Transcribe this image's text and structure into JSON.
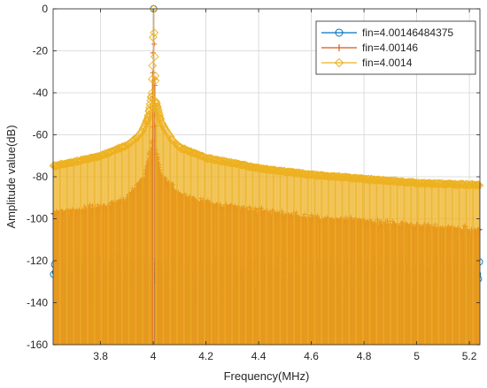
{
  "chart_data": {
    "type": "line",
    "xlabel": "Frequency(MHz)",
    "ylabel": "Amplitude value(dB)",
    "xlim": [
      3.62,
      5.24
    ],
    "ylim": [
      -160,
      0
    ],
    "xticks": [
      3.8,
      4,
      4.2,
      4.4,
      4.6,
      4.8,
      5,
      5.2
    ],
    "yticks": [
      0,
      -20,
      -40,
      -60,
      -80,
      -100,
      -120,
      -140,
      -160
    ],
    "xtick_labels": [
      "3.8",
      "4",
      "4.2",
      "4.4",
      "4.6",
      "4.8",
      "5",
      "5.2"
    ],
    "ytick_labels": [
      "0",
      "-20",
      "-40",
      "-60",
      "-80",
      "-100",
      "-120",
      "-140",
      "-160"
    ],
    "grid": true,
    "legend_position": "top-right",
    "series": [
      {
        "name": "fin=4.00146484375",
        "color": "#0072BD",
        "marker": "circle",
        "peak": [
          4.0015,
          0
        ],
        "noise_floor_mean": -125,
        "noise_floor_range": [
          -150,
          -111
        ]
      },
      {
        "name": "fin=4.00146",
        "color": "#D95319",
        "marker": "plus",
        "peak": [
          4.0015,
          0
        ],
        "x": [
          3.62,
          3.8,
          3.9,
          3.97,
          3.995,
          4.0015,
          4.01,
          4.03,
          4.1,
          4.2,
          4.4,
          4.6,
          4.8,
          5.0,
          5.24
        ],
        "y": [
          -98,
          -95,
          -91,
          -80,
          -65,
          0,
          -68,
          -80,
          -89,
          -93,
          -97,
          -100,
          -102,
          -104,
          -106
        ]
      },
      {
        "name": "fin=4.0014",
        "color": "#EDB120",
        "marker": "diamond",
        "peak": [
          4.0015,
          0
        ],
        "x": [
          3.62,
          3.7,
          3.8,
          3.9,
          3.95,
          3.98,
          3.995,
          4.0015,
          4.01,
          4.03,
          4.07,
          4.1,
          4.2,
          4.4,
          4.6,
          4.8,
          5.0,
          5.24
        ],
        "y": [
          -75,
          -73,
          -70,
          -65,
          -60,
          -52,
          -40,
          0,
          -44,
          -54,
          -62,
          -66,
          -71,
          -76,
          -79,
          -81,
          -83,
          -84
        ]
      }
    ]
  }
}
